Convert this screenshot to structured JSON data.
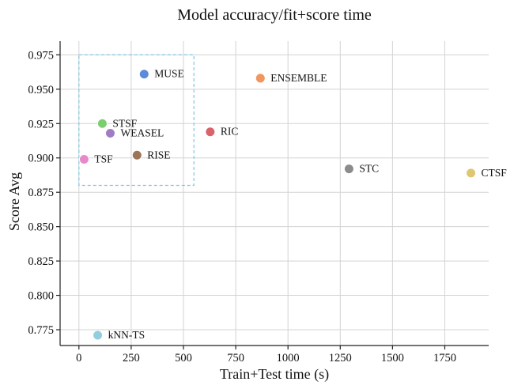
{
  "chart_data": {
    "type": "scatter",
    "title": "Model accuracy/fit+score time",
    "xlabel": "Train+Test time (s)",
    "ylabel": "Score Avg",
    "xlim": [
      -90,
      1960
    ],
    "ylim": [
      0.7635,
      0.985
    ],
    "xticks": [
      0,
      250,
      500,
      750,
      1000,
      1250,
      1500,
      1750
    ],
    "yticks": [
      0.775,
      0.8,
      0.825,
      0.85,
      0.875,
      0.9,
      0.925,
      0.95,
      0.975
    ],
    "grid": true,
    "highlight_box": {
      "x": [
        0,
        550
      ],
      "y": [
        0.88,
        0.975
      ],
      "color": "#7ec8e3",
      "style": "dashed"
    },
    "points": [
      {
        "label": "MUSE",
        "x": 312,
        "y": 0.961,
        "color": "#5b8bd9"
      },
      {
        "label": "ENSEMBLE",
        "x": 868,
        "y": 0.958,
        "color": "#f0965e"
      },
      {
        "label": "STSF",
        "x": 112,
        "y": 0.925,
        "color": "#7ccd72"
      },
      {
        "label": "WEASEL",
        "x": 150,
        "y": 0.918,
        "color": "#a07cc5"
      },
      {
        "label": "RIC",
        "x": 628,
        "y": 0.919,
        "color": "#d9636b"
      },
      {
        "label": "RISE",
        "x": 278,
        "y": 0.902,
        "color": "#9c7458"
      },
      {
        "label": "TSF",
        "x": 25,
        "y": 0.899,
        "color": "#e68ac8"
      },
      {
        "label": "STC",
        "x": 1292,
        "y": 0.892,
        "color": "#8c8c8c"
      },
      {
        "label": "CTSF",
        "x": 1875,
        "y": 0.889,
        "color": "#dec673"
      },
      {
        "label": "kNN-TS",
        "x": 90,
        "y": 0.771,
        "color": "#92cde0"
      }
    ]
  }
}
